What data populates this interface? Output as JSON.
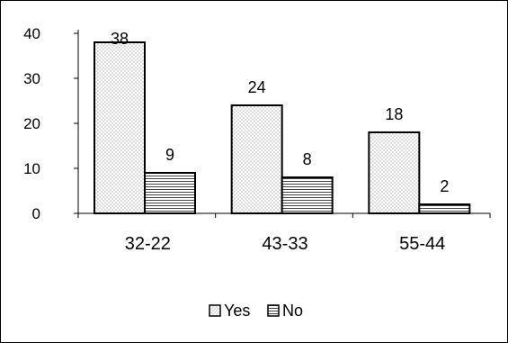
{
  "chart_data": {
    "type": "bar",
    "categories": [
      "32-22",
      "43-33",
      "55-44"
    ],
    "series": [
      {
        "name": "Yes",
        "values": [
          38,
          24,
          18
        ],
        "pattern": "dots"
      },
      {
        "name": "No",
        "values": [
          9,
          8,
          2
        ],
        "pattern": "hlines"
      }
    ],
    "y_ticks": [
      0,
      10,
      20,
      30,
      40
    ],
    "ylim": [
      0,
      40
    ],
    "legend_position": "bottom",
    "grid": false,
    "colors": {
      "bar_fill": "#ffffff",
      "bar_stroke": "#000000",
      "axis": "#000000",
      "pattern": "#555555"
    }
  }
}
